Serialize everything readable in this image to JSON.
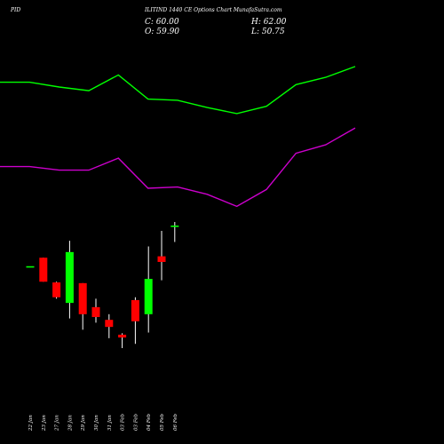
{
  "header": {
    "symbol": "PID",
    "title": "ILITIND 1440  CE Options  Chart MunafaSutra.com",
    "close_label": "C: 60.00",
    "open_label": "O: 59.90",
    "high_label": "H: 62.00",
    "low_label": "L: 50.75"
  },
  "chart_data": {
    "type": "candlestick",
    "categories": [
      "22 Jan",
      "23 Jan",
      "27 Jan",
      "28 Jan",
      "29 Jan",
      "30 Jan",
      "31 Jan",
      "03 Feb",
      "03 Feb",
      "04 Feb",
      "05 Feb",
      "06 Feb"
    ],
    "candles": [
      {
        "open": 102.0,
        "high": 102.0,
        "low": 102.0,
        "close": 102.0,
        "color": "#00ff00"
      },
      {
        "open": 108.0,
        "high": 108.0,
        "low": 91.0,
        "close": 91.0,
        "color": "#ff0000"
      },
      {
        "open": 90.5,
        "high": 91.0,
        "low": 79.0,
        "close": 80.0,
        "color": "#ff0000"
      },
      {
        "open": 76.0,
        "high": 120.0,
        "low": 65.0,
        "close": 112.0,
        "color": "#00ff00"
      },
      {
        "open": 90.0,
        "high": 90.0,
        "low": 57.0,
        "close": 68.0,
        "color": "#ff0000"
      },
      {
        "open": 73.0,
        "high": 79.0,
        "low": 62.0,
        "close": 66.0,
        "color": "#ff0000"
      },
      {
        "open": 64.0,
        "high": 68.0,
        "low": 51.0,
        "close": 59.0,
        "color": "#ff0000"
      },
      {
        "open": 53.5,
        "high": 54.5,
        "low": 44.0,
        "close": 51.5,
        "color": "#ff0000"
      },
      {
        "open": 78.0,
        "high": 80.0,
        "low": 47.0,
        "close": 63.0,
        "color": "#ff0000"
      },
      {
        "open": 68.0,
        "high": 116.0,
        "low": 55.0,
        "close": 93.0,
        "color": "#00ff00"
      },
      {
        "open": 109.0,
        "high": 127.0,
        "low": 92.0,
        "close": 105.0,
        "color": "#ff0000"
      },
      {
        "open": 59.9,
        "high": 62.0,
        "low": 50.75,
        "close": 60.0,
        "color": "#00ff00",
        "price_scale": "own"
      }
    ],
    "indicators": [
      {
        "color": "#00ff00",
        "values": [
          98,
          98,
          96,
          94.5,
          101,
          91,
          90.5,
          87.5,
          85,
          88,
          97,
          100,
          104.5
        ]
      },
      {
        "color": "#cc00cc",
        "values": [
          63,
          63,
          61.5,
          61.5,
          66.5,
          54,
          54.5,
          51.5,
          46.5,
          53.5,
          68.5,
          72,
          79
        ]
      }
    ],
    "colors": {
      "up": "#00ff00",
      "down": "#ff0000",
      "background": "#000000",
      "axis_text": "#ffffff"
    }
  }
}
